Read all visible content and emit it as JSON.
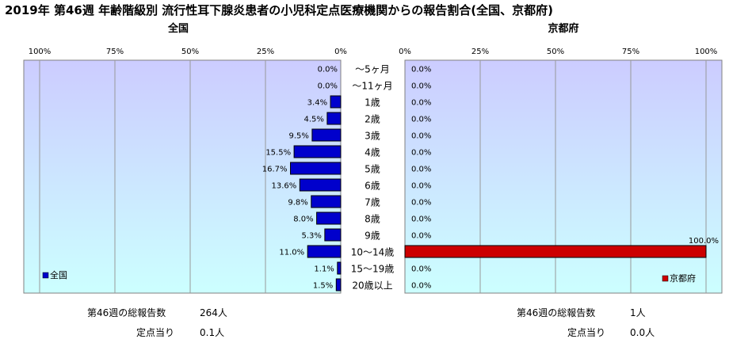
{
  "title": "2019年 第46週 年齢階級別 流行性耳下腺炎患者の小児科定点医療機関からの報告割合(全国、京都府)",
  "colors": {
    "left_bar": "#0000cc",
    "right_bar": "#cc0000",
    "panel_bg_top": "#ccccff",
    "panel_bg_bottom": "#ccffff",
    "grid": "#999999"
  },
  "chart_data": [
    {
      "type": "bar",
      "orientation": "horizontal",
      "direction": "right-to-left",
      "title": "全国",
      "categories": [
        "～5ヶ月",
        "～11ヶ月",
        "1歳",
        "2歳",
        "3歳",
        "4歳",
        "5歳",
        "6歳",
        "7歳",
        "8歳",
        "9歳",
        "10～14歳",
        "15～19歳",
        "20歳以上"
      ],
      "series": [
        {
          "name": "全国",
          "values": [
            0.0,
            0.0,
            3.4,
            4.5,
            9.5,
            15.5,
            16.7,
            13.6,
            9.8,
            8.0,
            5.3,
            11.0,
            1.1,
            1.5
          ]
        }
      ],
      "value_labels": [
        "0.0%",
        "0.0%",
        "3.4%",
        "4.5%",
        "9.5%",
        "15.5%",
        "16.7%",
        "13.6%",
        "9.8%",
        "8.0%",
        "5.3%",
        "11.0%",
        "1.1%",
        "1.5%"
      ],
      "xlim": [
        0,
        100
      ],
      "xticks": [
        "100%",
        "75%",
        "50%",
        "25%",
        "0%"
      ],
      "grid": true,
      "legend": "bottom-left"
    },
    {
      "type": "bar",
      "orientation": "horizontal",
      "direction": "left-to-right",
      "title": "京都府",
      "categories": [
        "～5ヶ月",
        "～11ヶ月",
        "1歳",
        "2歳",
        "3歳",
        "4歳",
        "5歳",
        "6歳",
        "7歳",
        "8歳",
        "9歳",
        "10～14歳",
        "15～19歳",
        "20歳以上"
      ],
      "series": [
        {
          "name": "京都府",
          "values": [
            0,
            0,
            0,
            0,
            0,
            0,
            0,
            0,
            0,
            0,
            0,
            100,
            0,
            0
          ]
        }
      ],
      "value_labels": [
        "0.0%",
        "0.0%",
        "0.0%",
        "0.0%",
        "0.0%",
        "0.0%",
        "0.0%",
        "0.0%",
        "0.0%",
        "0.0%",
        "0.0%",
        "100.0%",
        "0.0%",
        "0.0%"
      ],
      "xlim": [
        0,
        100
      ],
      "xticks": [
        "0%",
        "25%",
        "50%",
        "75%",
        "100%"
      ],
      "grid": true,
      "legend": "bottom-right"
    }
  ],
  "footer": {
    "left": {
      "total_label": "第46週の総報告数",
      "total_value": "264人",
      "per_label": "定点当り",
      "per_value": "0.1人"
    },
    "right": {
      "total_label": "第46週の総報告数",
      "total_value": "1人",
      "per_label": "定点当り",
      "per_value": "0.0人"
    }
  }
}
